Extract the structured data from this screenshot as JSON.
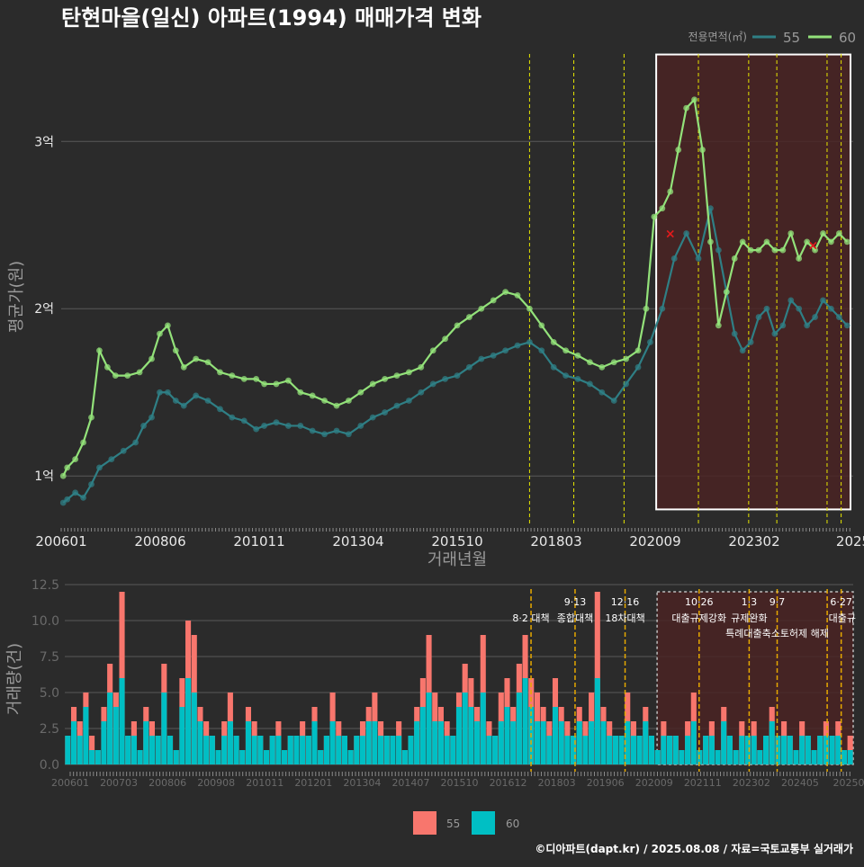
{
  "title": "탄현마을(일신) 아파트(1994) 매매가격 변화",
  "footer": "©디아파트(dapt.kr) / 2025.08.08 / 자료=국토교통부 실거래가",
  "colors": {
    "background": "#2b2b2b",
    "grid": "#5a5a5a",
    "text": "#e8e8e8",
    "axis_title": "#9a9a9a",
    "line_55": "#2f7f85",
    "line_60": "#93e27a",
    "bar_55": "#f8766d",
    "bar_60": "#00bfc4",
    "policy_line": "#e6e600",
    "policy_line_bottom": "#e6a800",
    "highlight_fill": "#4a2323",
    "highlight_stroke": "#ffffff",
    "marker_x": "#e31a1c"
  },
  "chart_data": [
    {
      "type": "line",
      "title": "",
      "xlabel": "거래년월",
      "ylabel": "평균가(원)",
      "x_ticks": [
        "200601",
        "200806",
        "201011",
        "201304",
        "201510",
        "201803",
        "202009",
        "202302",
        "2025"
      ],
      "y_ticks": [
        {
          "value": 1,
          "label": "1억"
        },
        {
          "value": 2,
          "label": "2억"
        },
        {
          "value": 3,
          "label": "3억"
        }
      ],
      "ylim": [
        0.7,
        3.55
      ],
      "xlim": [
        2005.95,
        2025.65
      ],
      "grid": true,
      "legend": {
        "title": "전용면적(㎡)",
        "position": "top-right",
        "entries": [
          "55",
          "60"
        ]
      },
      "series": [
        {
          "name": "55",
          "x": [
            2006.0,
            2006.1,
            2006.3,
            2006.5,
            2006.7,
            2006.9,
            2007.2,
            2007.5,
            2007.8,
            2008.0,
            2008.2,
            2008.4,
            2008.6,
            2008.8,
            2009.0,
            2009.3,
            2009.6,
            2009.9,
            2010.2,
            2010.5,
            2010.8,
            2011.0,
            2011.3,
            2011.6,
            2011.9,
            2012.2,
            2012.5,
            2012.8,
            2013.1,
            2013.4,
            2013.7,
            2014.0,
            2014.3,
            2014.6,
            2014.9,
            2015.2,
            2015.5,
            2015.8,
            2016.1,
            2016.4,
            2016.7,
            2017.0,
            2017.3,
            2017.6,
            2017.9,
            2018.2,
            2018.5,
            2018.8,
            2019.1,
            2019.4,
            2019.7,
            2020.0,
            2020.3,
            2020.6,
            2020.9,
            2021.2,
            2021.5,
            2021.8,
            2022.1,
            2022.3,
            2022.5,
            2022.7,
            2022.9,
            2023.1,
            2023.3,
            2023.5,
            2023.7,
            2023.9,
            2024.1,
            2024.3,
            2024.5,
            2024.7,
            2024.9,
            2025.1,
            2025.3,
            2025.5
          ],
          "y": [
            0.84,
            0.86,
            0.9,
            0.87,
            0.95,
            1.05,
            1.1,
            1.15,
            1.2,
            1.3,
            1.35,
            1.5,
            1.5,
            1.45,
            1.42,
            1.48,
            1.45,
            1.4,
            1.35,
            1.33,
            1.28,
            1.3,
            1.32,
            1.3,
            1.3,
            1.27,
            1.25,
            1.27,
            1.25,
            1.3,
            1.35,
            1.38,
            1.42,
            1.45,
            1.5,
            1.55,
            1.58,
            1.6,
            1.65,
            1.7,
            1.72,
            1.75,
            1.78,
            1.8,
            1.75,
            1.65,
            1.6,
            1.58,
            1.55,
            1.5,
            1.45,
            1.55,
            1.65,
            1.8,
            2.0,
            2.3,
            2.45,
            2.3,
            2.6,
            2.35,
            2.1,
            1.85,
            1.75,
            1.8,
            1.95,
            2.0,
            1.85,
            1.9,
            2.05,
            2.0,
            1.9,
            1.95,
            2.05,
            2.0,
            1.95,
            1.9
          ]
        },
        {
          "name": "60",
          "x": [
            2006.0,
            2006.1,
            2006.3,
            2006.5,
            2006.7,
            2006.9,
            2007.1,
            2007.3,
            2007.6,
            2007.9,
            2008.2,
            2008.4,
            2008.6,
            2008.8,
            2009.0,
            2009.3,
            2009.6,
            2009.9,
            2010.2,
            2010.5,
            2010.8,
            2011.0,
            2011.3,
            2011.6,
            2011.9,
            2012.2,
            2012.5,
            2012.8,
            2013.1,
            2013.4,
            2013.7,
            2014.0,
            2014.3,
            2014.6,
            2014.9,
            2015.2,
            2015.5,
            2015.8,
            2016.1,
            2016.4,
            2016.7,
            2017.0,
            2017.3,
            2017.6,
            2017.9,
            2018.2,
            2018.5,
            2018.8,
            2019.1,
            2019.4,
            2019.7,
            2020.0,
            2020.3,
            2020.5,
            2020.7,
            2020.9,
            2021.1,
            2021.3,
            2021.5,
            2021.7,
            2021.9,
            2022.1,
            2022.3,
            2022.5,
            2022.7,
            2022.9,
            2023.1,
            2023.3,
            2023.5,
            2023.7,
            2023.9,
            2024.1,
            2024.3,
            2024.5,
            2024.7,
            2024.9,
            2025.1,
            2025.3,
            2025.5
          ],
          "y": [
            1.0,
            1.05,
            1.1,
            1.2,
            1.35,
            1.75,
            1.65,
            1.6,
            1.6,
            1.62,
            1.7,
            1.85,
            1.9,
            1.75,
            1.65,
            1.7,
            1.68,
            1.62,
            1.6,
            1.58,
            1.58,
            1.55,
            1.55,
            1.57,
            1.5,
            1.48,
            1.45,
            1.42,
            1.45,
            1.5,
            1.55,
            1.58,
            1.6,
            1.62,
            1.65,
            1.75,
            1.82,
            1.9,
            1.95,
            2.0,
            2.05,
            2.1,
            2.08,
            2.0,
            1.9,
            1.8,
            1.75,
            1.72,
            1.68,
            1.65,
            1.68,
            1.7,
            1.75,
            2.0,
            2.55,
            2.6,
            2.7,
            2.95,
            3.2,
            3.25,
            2.95,
            2.4,
            1.9,
            2.1,
            2.3,
            2.4,
            2.35,
            2.35,
            2.4,
            2.35,
            2.35,
            2.45,
            2.3,
            2.4,
            2.35,
            2.45,
            2.4,
            2.45,
            2.4
          ]
        }
      ],
      "markers_x": [
        {
          "x": 2021.1,
          "y": 2.45
        },
        {
          "x": 2024.65,
          "y": 2.38
        }
      ],
      "policy_lines": [
        2017.6,
        2018.7,
        2019.95,
        2021.8,
        2023.05,
        2023.75,
        2025.0,
        2025.35
      ],
      "highlight_range": {
        "x": [
          2020.75,
          2025.65
        ],
        "y": [
          0.8,
          3.52
        ]
      }
    },
    {
      "type": "bar",
      "title": "",
      "xlabel": "",
      "ylabel": "거래량(건)",
      "x_ticks": [
        "200601",
        "200703",
        "200806",
        "200908",
        "201011",
        "201201",
        "201304",
        "201407",
        "201510",
        "201612",
        "201803",
        "201906",
        "202009",
        "202111",
        "202302",
        "202405",
        "20250"
      ],
      "y_ticks": [
        {
          "value": 0,
          "label": "0.0"
        },
        {
          "value": 2.5,
          "label": "2.5"
        },
        {
          "value": 5,
          "label": "5.0"
        },
        {
          "value": 7.5,
          "label": "7.5"
        },
        {
          "value": 10,
          "label": "10.0"
        },
        {
          "value": 12.5,
          "label": "12.5"
        }
      ],
      "ylim": [
        0,
        12.5
      ],
      "xlim": [
        2005.95,
        2025.65
      ],
      "grid": true,
      "legend": {
        "title": "",
        "position": "bottom",
        "entries": [
          "55",
          "60"
        ]
      },
      "series": [
        {
          "name": "55",
          "values": [
            2,
            4,
            3,
            5,
            2,
            1,
            4,
            7,
            5,
            12,
            2,
            3,
            1,
            4,
            3,
            2,
            7,
            2,
            1,
            6,
            10,
            9,
            4,
            3,
            2,
            1,
            3,
            5,
            2,
            1,
            4,
            3,
            2,
            1,
            2,
            3,
            1,
            2,
            2,
            3,
            2,
            4,
            1,
            2,
            5,
            3,
            2,
            1,
            2,
            3,
            4,
            5,
            3,
            2,
            2,
            3,
            1,
            2,
            4,
            6,
            9,
            5,
            4,
            3,
            2,
            5,
            7,
            6,
            4,
            9,
            3,
            2,
            5,
            6,
            4,
            7,
            9,
            6,
            5,
            4,
            3,
            6,
            4,
            3,
            2,
            4,
            3,
            5,
            12,
            4,
            3,
            2,
            2,
            5,
            3,
            2,
            4,
            2,
            1,
            3,
            2,
            2,
            1,
            3,
            5,
            1,
            2,
            3,
            1,
            4,
            2,
            1,
            3,
            2,
            3,
            1,
            2,
            4,
            2,
            3,
            2,
            1,
            3,
            2,
            1,
            2,
            3,
            2,
            3,
            1,
            2
          ]
        },
        {
          "name": "60",
          "values": [
            2,
            3,
            2,
            4,
            1,
            1,
            3,
            5,
            4,
            6,
            2,
            2,
            1,
            3,
            2,
            2,
            5,
            2,
            1,
            4,
            6,
            5,
            3,
            2,
            2,
            1,
            2,
            3,
            2,
            1,
            3,
            2,
            2,
            1,
            2,
            2,
            1,
            2,
            2,
            2,
            2,
            3,
            1,
            2,
            3,
            2,
            2,
            1,
            2,
            2,
            3,
            3,
            2,
            2,
            2,
            2,
            1,
            2,
            3,
            4,
            5,
            3,
            3,
            2,
            2,
            4,
            5,
            4,
            3,
            5,
            2,
            2,
            3,
            4,
            3,
            5,
            6,
            4,
            3,
            3,
            2,
            4,
            3,
            2,
            2,
            3,
            2,
            3,
            6,
            3,
            2,
            2,
            2,
            3,
            2,
            2,
            3,
            2,
            1,
            2,
            2,
            2,
            1,
            2,
            3,
            1,
            2,
            2,
            1,
            3,
            2,
            1,
            2,
            2,
            2,
            1,
            2,
            3,
            2,
            2,
            2,
            1,
            2,
            2,
            1,
            2,
            2,
            2,
            2,
            1,
            1
          ]
        }
      ],
      "policy_lines": [
        2017.6,
        2018.7,
        2019.95,
        2021.8,
        2023.05,
        2023.75,
        2025.0,
        2025.35
      ],
      "annotations": [
        {
          "line1": "",
          "line2": "8·2 대책",
          "x": 2017.6
        },
        {
          "line1": "9·13",
          "line2": "종합대책",
          "x": 2018.7
        },
        {
          "line1": "12·16",
          "line2": "18차대책",
          "x": 2019.95
        },
        {
          "line1": "10·26",
          "line2": "대출규제강화",
          "x": 2021.8
        },
        {
          "line1": "1·3",
          "line2": "규제완화",
          "x": 2023.05
        },
        {
          "line1": "9·7",
          "line2": "특례대출축소토허제 해제",
          "x": 2023.75
        },
        {
          "line1": "6·27",
          "line2": "대출규",
          "x": 2025.35
        }
      ],
      "highlight_range": {
        "x": [
          2020.75,
          2025.65
        ],
        "y": [
          0,
          12
        ]
      }
    }
  ]
}
